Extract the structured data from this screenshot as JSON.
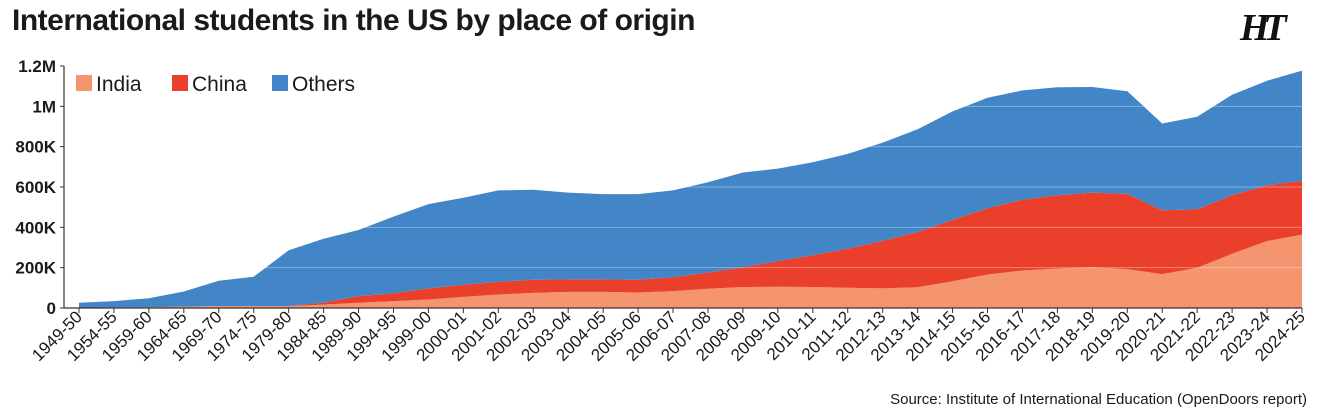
{
  "header": {
    "title": "International students in the US by place of origin",
    "logo_text": "HT"
  },
  "footer": {
    "source": "Source: Institute of International Education (OpenDoors report)"
  },
  "chart_data": {
    "type": "area",
    "stacked": true,
    "title": "International students in the US by place of origin",
    "xlabel": "",
    "ylabel": "",
    "ylim": [
      0,
      1200000
    ],
    "yticks": [
      0,
      200000,
      400000,
      600000,
      800000,
      1000000,
      1200000
    ],
    "ytick_labels": [
      "0",
      "200K",
      "400K",
      "600K",
      "800K",
      "1M",
      "1.2M"
    ],
    "grid": "horizontal",
    "legend_position": "top-left",
    "x": [
      "1949-50",
      "1954-55",
      "1959-60",
      "1964-65",
      "1969-70",
      "1974-75",
      "1979-80",
      "1984-85",
      "1989-90",
      "1994-95",
      "1999-00",
      "2000-01",
      "2001-02",
      "2002-03",
      "2003-04",
      "2004-05",
      "2005-06",
      "2006-07",
      "2007-08",
      "2008-09",
      "2009-10",
      "2010-11",
      "2011-12",
      "2012-13",
      "2013-14",
      "2014-15",
      "2015-16",
      "2016-17",
      "2017-18",
      "2018-19",
      "2019-20",
      "2020-21",
      "2021-22",
      "2022-23",
      "2023-24",
      "2024-25"
    ],
    "series": [
      {
        "name": "India",
        "color": "#f4956f",
        "values": [
          2000,
          3000,
          4000,
          7000,
          10000,
          10000,
          9000,
          17000,
          26000,
          34000,
          42000,
          55000,
          67000,
          75000,
          80000,
          80000,
          77000,
          84000,
          95000,
          104000,
          105000,
          104000,
          100000,
          97000,
          103000,
          133000,
          166000,
          186000,
          196000,
          202000,
          193000,
          168000,
          200000,
          269000,
          332000,
          364000
        ]
      },
      {
        "name": "China",
        "color": "#ea3f2a",
        "values": [
          0,
          0,
          0,
          0,
          0,
          0,
          1000,
          10000,
          33000,
          39000,
          55000,
          60000,
          63000,
          65000,
          62000,
          62000,
          63000,
          68000,
          81000,
          98000,
          128000,
          158000,
          194000,
          236000,
          274000,
          304000,
          329000,
          351000,
          363000,
          370000,
          373000,
          317000,
          290000,
          290000,
          277000,
          266000
        ]
      },
      {
        "name": "Others",
        "color": "#4386c8",
        "values": [
          24000,
          31000,
          44000,
          75000,
          125000,
          145000,
          276000,
          316000,
          328000,
          380000,
          418000,
          432000,
          453000,
          446000,
          430000,
          423000,
          425000,
          431000,
          448000,
          470000,
          458000,
          461000,
          470000,
          487000,
          509000,
          538000,
          548000,
          542000,
          536000,
          524000,
          509000,
          430000,
          458000,
          498000,
          518000,
          547000
        ]
      }
    ]
  }
}
